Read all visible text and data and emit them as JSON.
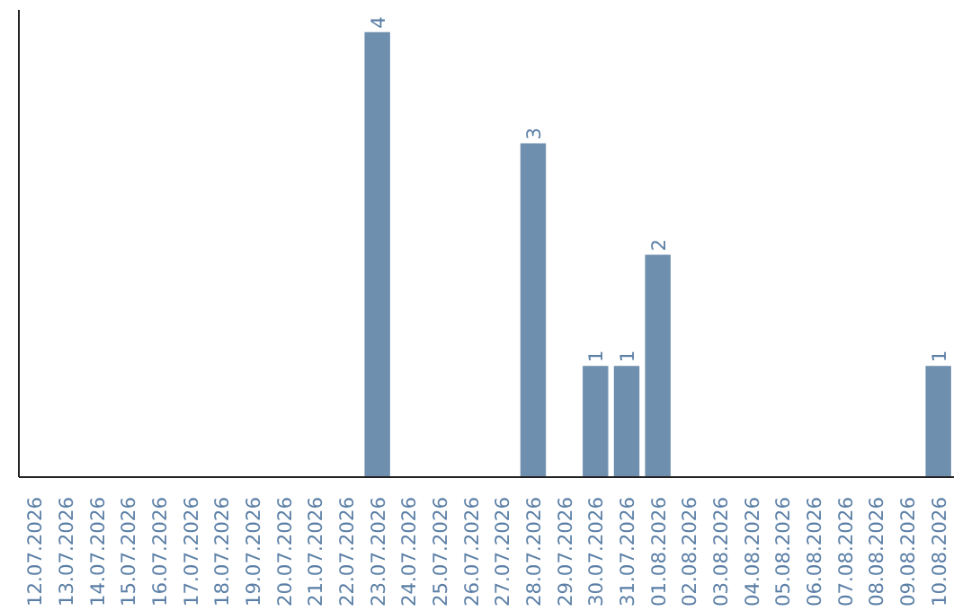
{
  "chart_data": {
    "type": "bar",
    "categories": [
      "12.07.2026",
      "13.07.2026",
      "14.07.2026",
      "15.07.2026",
      "16.07.2026",
      "17.07.2026",
      "18.07.2026",
      "19.07.2026",
      "20.07.2026",
      "21.07.2026",
      "22.07.2026",
      "23.07.2026",
      "24.07.2026",
      "25.07.2026",
      "26.07.2026",
      "27.07.2026",
      "28.07.2026",
      "29.07.2026",
      "30.07.2026",
      "31.07.2026",
      "01.08.2026",
      "02.08.2026",
      "03.08.2026",
      "04.08.2026",
      "05.08.2026",
      "06.08.2026",
      "07.08.2026",
      "08.08.2026",
      "09.08.2026",
      "10.08.2026"
    ],
    "values": [
      0,
      0,
      0,
      0,
      0,
      0,
      0,
      0,
      0,
      0,
      0,
      4,
      0,
      0,
      0,
      0,
      3,
      0,
      1,
      1,
      2,
      0,
      0,
      0,
      0,
      0,
      0,
      0,
      0,
      1
    ],
    "value_labels": [
      null,
      null,
      null,
      null,
      null,
      null,
      null,
      null,
      null,
      null,
      null,
      "4",
      null,
      null,
      null,
      null,
      "3",
      null,
      "1",
      "1",
      "2",
      null,
      null,
      null,
      null,
      null,
      null,
      null,
      null,
      "1"
    ],
    "color": "#6f8fae",
    "ylim": [
      0,
      4.2
    ],
    "tick_labels": "x",
    "grid": false
  }
}
